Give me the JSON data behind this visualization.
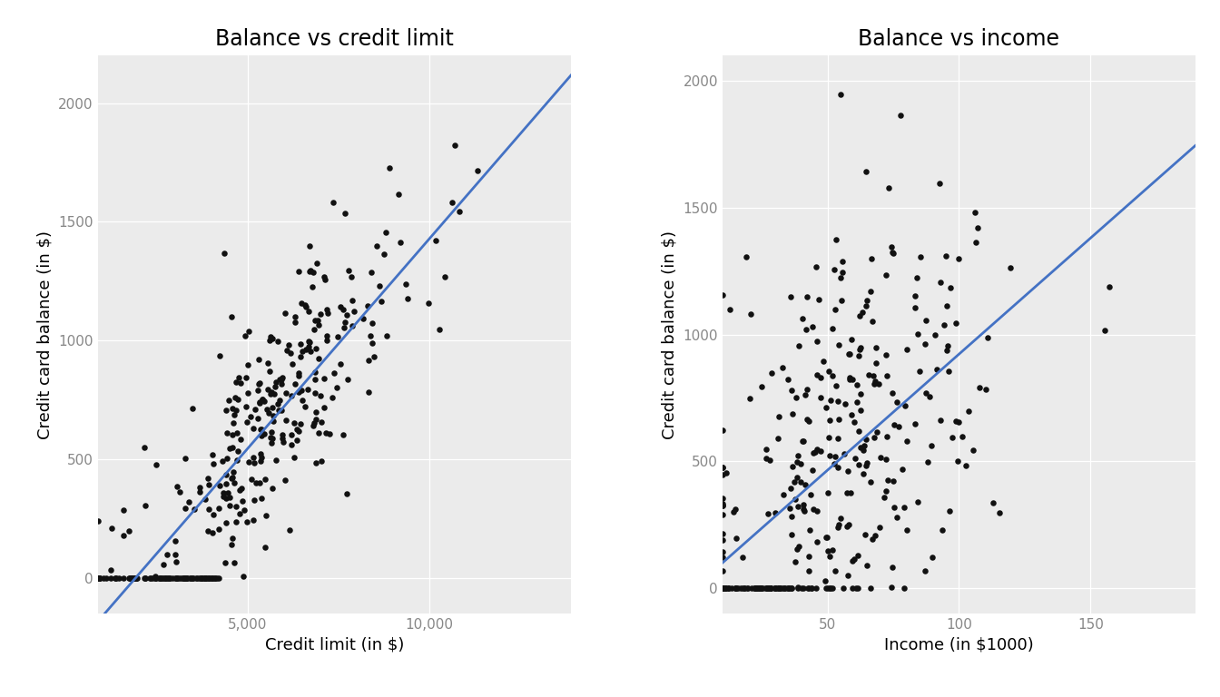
{
  "title1": "Balance vs credit limit",
  "title2": "Balance vs income",
  "xlabel1": "Credit limit (in $)",
  "ylabel1": "Credit card balance (in $)",
  "xlabel2": "Income (in $1000)",
  "ylabel2": "Credit card balance (in $)",
  "bg_color": "#EBEBEB",
  "point_color": "#111111",
  "line_color": "#4472C4",
  "point_size": 22,
  "line_width": 2.0,
  "xlim1": [
    855,
    13913
  ],
  "ylim1": [
    -150,
    2200
  ],
  "xlim2": [
    10,
    190
  ],
  "ylim2": [
    -100,
    2100
  ],
  "xticks1": [
    5000,
    10000
  ],
  "yticks1": [
    0,
    500,
    1000,
    1500,
    2000
  ],
  "xticks2": [
    50,
    100,
    150
  ],
  "yticks2": [
    0,
    500,
    1000,
    1500,
    2000
  ],
  "title_fontsize": 17,
  "label_fontsize": 13,
  "tick_fontsize": 11,
  "tick_color": "#888888"
}
